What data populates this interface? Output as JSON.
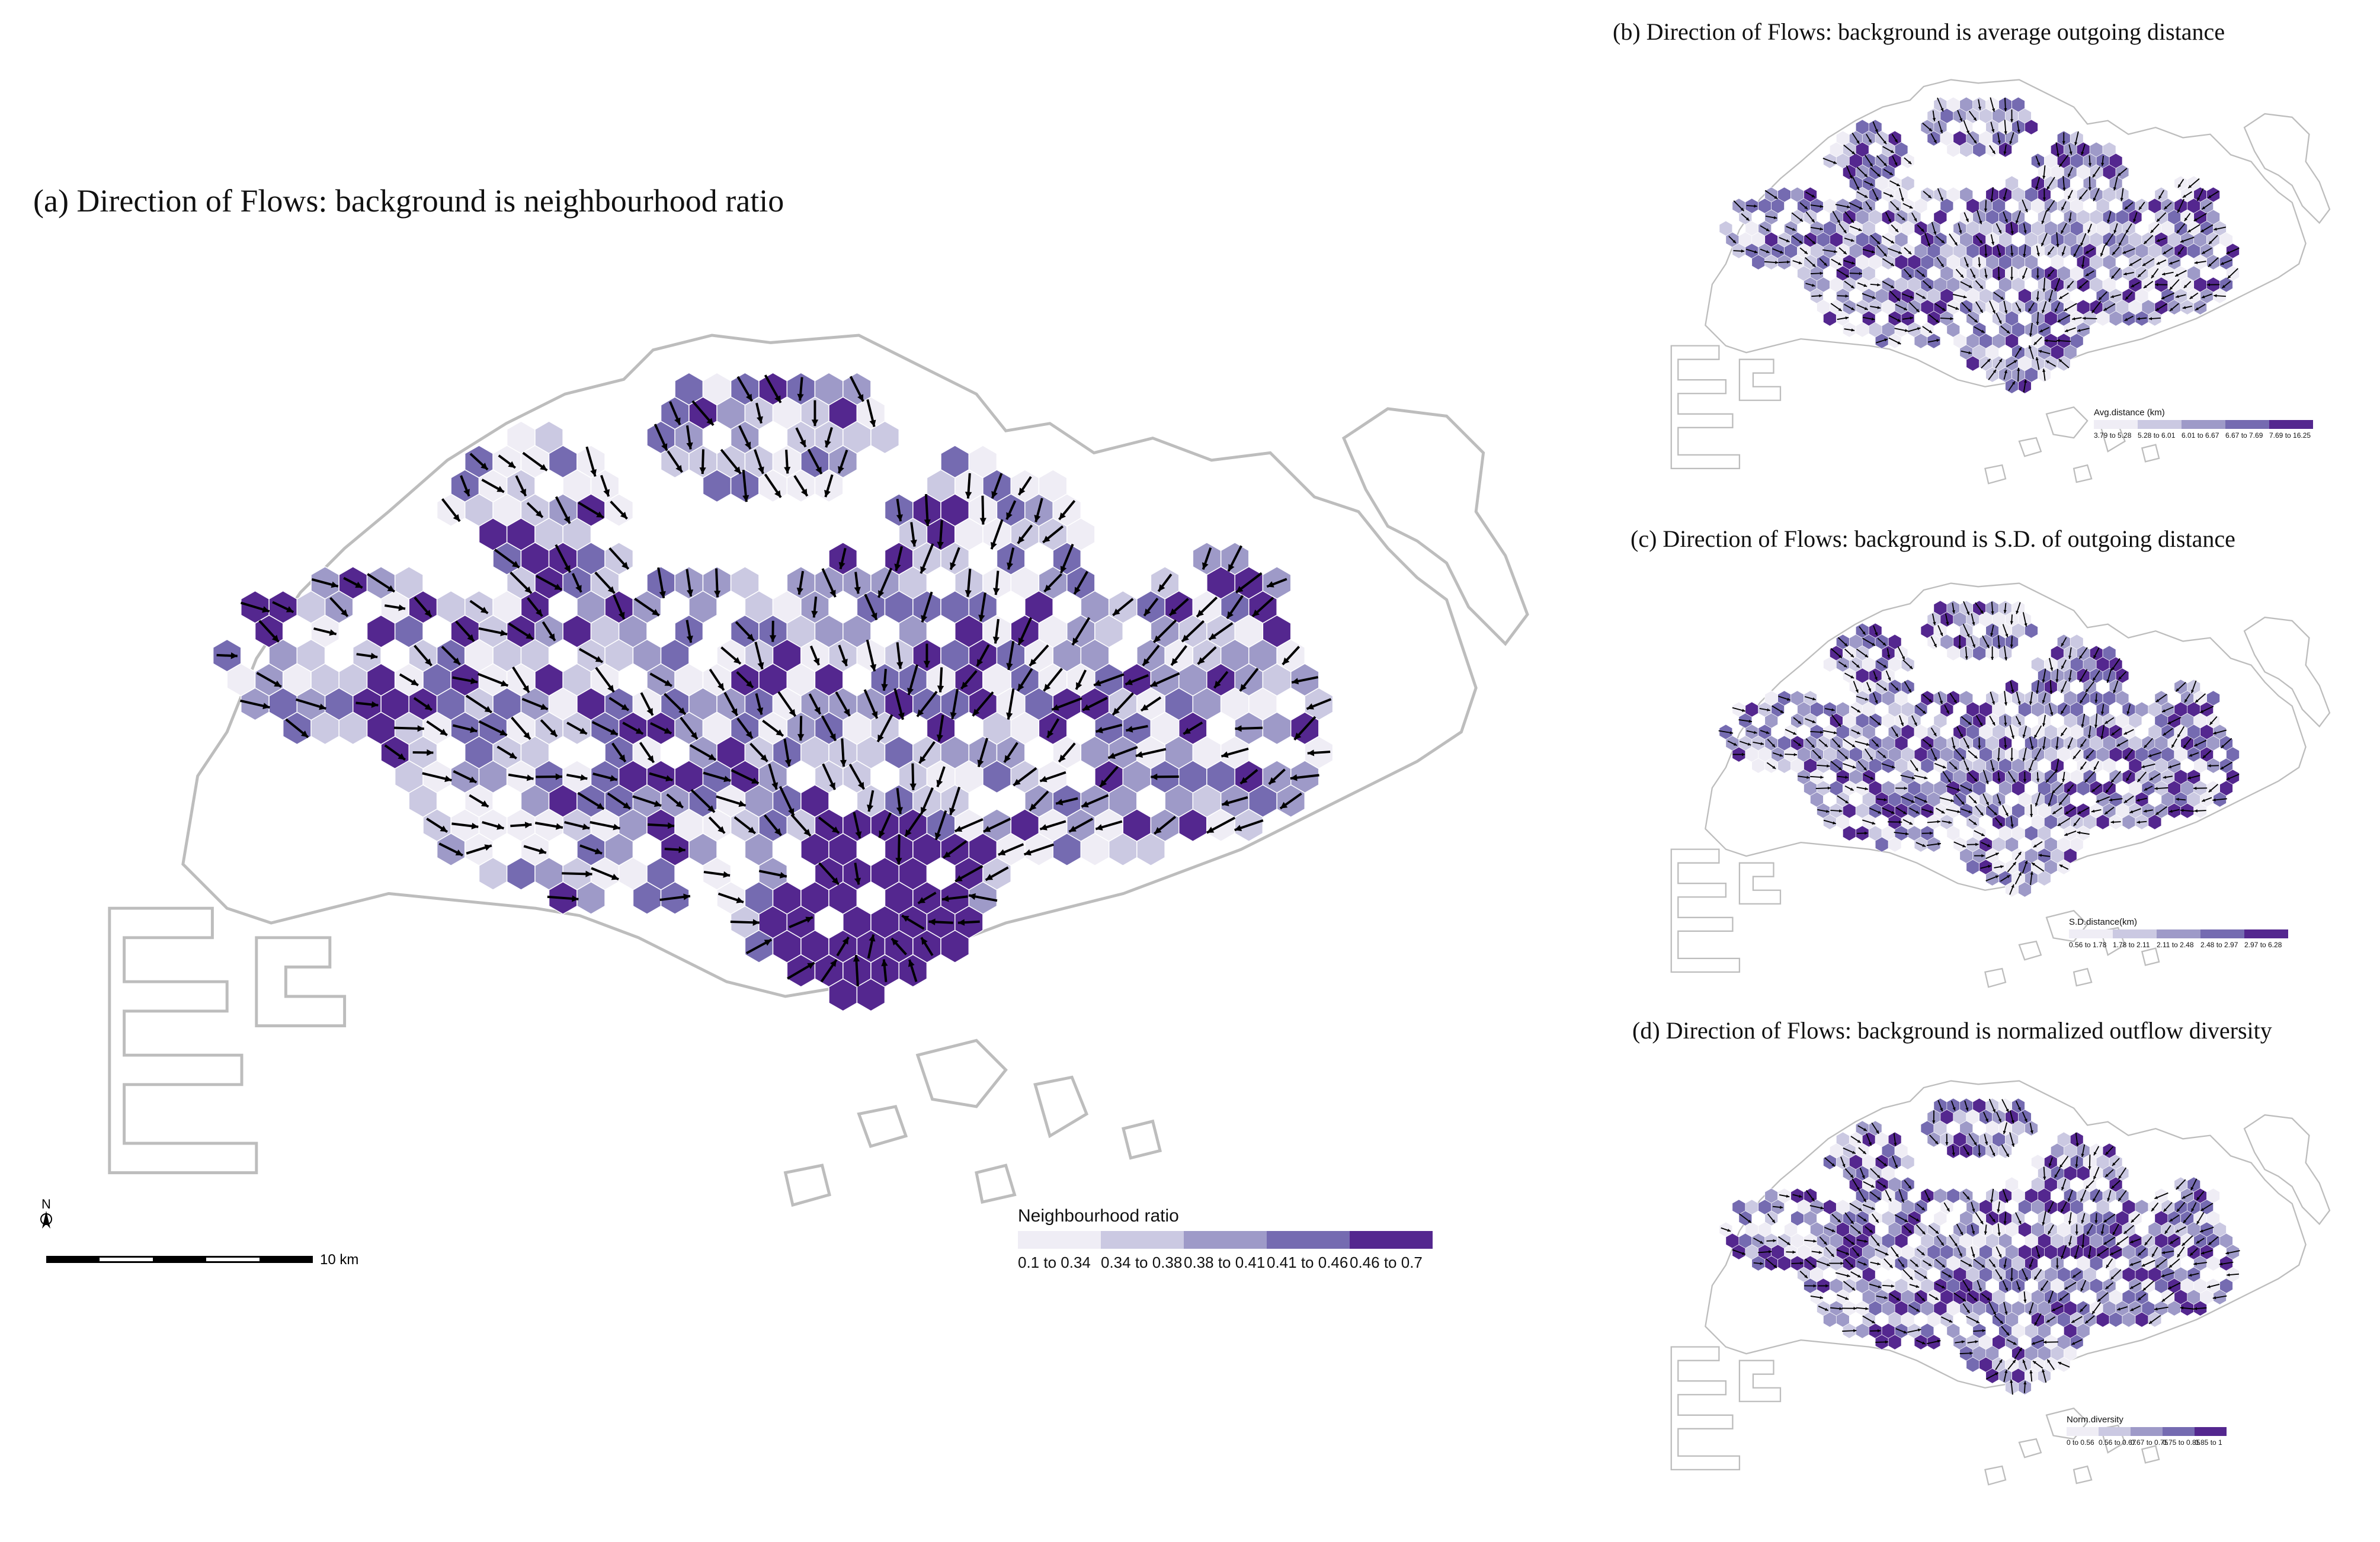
{
  "panels": {
    "a": {
      "title": "(a) Direction of Flows: background is neighbourhood ratio",
      "legend_title": "Neighbourhood ratio",
      "classes": [
        "0.1 to 0.34",
        "0.34 to 0.38",
        "0.38 to 0.41",
        "0.41 to 0.46",
        "0.46 to 0.7"
      ]
    },
    "b": {
      "title": "(b) Direction of Flows: background is average outgoing distance",
      "legend_title": "Avg.distance (km)",
      "classes": [
        "3.79 to 5.28",
        "5.28 to 6.01",
        "6.01 to 6.67",
        "6.67 to 7.69",
        "7.69 to 16.25"
      ]
    },
    "c": {
      "title": "(c) Direction of Flows: background is S.D. of outgoing distance",
      "legend_title": "S.D.distance(km)",
      "classes": [
        "0.56 to 1.78",
        "1.78 to 2.11",
        "2.11 to 2.48",
        "2.48 to 2.97",
        "2.97 to 6.28"
      ]
    },
    "d": {
      "title": "(d) Direction of Flows: background is normalized outflow diversity",
      "legend_title": "Norm.diversity",
      "classes": [
        "0 to 0.56",
        "0.56 to 0.67",
        "0.67 to 0.75",
        "0.75 to 0.85",
        "0.85 to 1"
      ]
    }
  },
  "palette": [
    "#efedf5",
    "#cbc9e2",
    "#9e9ac8",
    "#756bb1",
    "#54278f"
  ],
  "coastline_color": "#bdbdbd",
  "arrow_color": "#000000",
  "north_label": "N",
  "scale_label": "10 km"
}
